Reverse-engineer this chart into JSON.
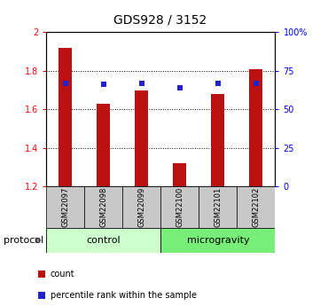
{
  "title": "GDS928 / 3152",
  "samples": [
    "GSM22097",
    "GSM22098",
    "GSM22099",
    "GSM22100",
    "GSM22101",
    "GSM22102"
  ],
  "bar_values": [
    1.92,
    1.63,
    1.7,
    1.32,
    1.68,
    1.81
  ],
  "bar_base": 1.2,
  "percentile_values": [
    67,
    66,
    67,
    64,
    67,
    67
  ],
  "bar_color": "#bb1111",
  "percentile_color": "#2222cc",
  "ylim_left": [
    1.2,
    2.0
  ],
  "ylim_right": [
    0,
    100
  ],
  "yticks_left": [
    1.2,
    1.4,
    1.6,
    1.8,
    2.0
  ],
  "ytick_labels_left": [
    "1.2",
    "1.4",
    "1.6",
    "1.8",
    "2"
  ],
  "yticks_right": [
    0,
    25,
    50,
    75,
    100
  ],
  "ytick_labels_right": [
    "0",
    "25",
    "50",
    "75",
    "100%"
  ],
  "grid_lines": [
    1.4,
    1.6,
    1.8
  ],
  "groups": [
    {
      "label": "control",
      "indices": [
        0,
        1,
        2
      ],
      "color": "#ccffcc"
    },
    {
      "label": "microgravity",
      "indices": [
        3,
        4,
        5
      ],
      "color": "#77ee77"
    }
  ],
  "protocol_label": "protocol",
  "legend": [
    {
      "label": "count",
      "color": "#bb1111"
    },
    {
      "label": "percentile rank within the sample",
      "color": "#2222cc"
    }
  ],
  "background_color": "#ffffff",
  "tick_label_bg": "#c8c8c8",
  "bar_width": 0.35,
  "title_fontsize": 10,
  "axis_label_fontsize": 7,
  "sample_label_fontsize": 6,
  "group_label_fontsize": 8,
  "legend_fontsize": 7,
  "protocol_fontsize": 8
}
